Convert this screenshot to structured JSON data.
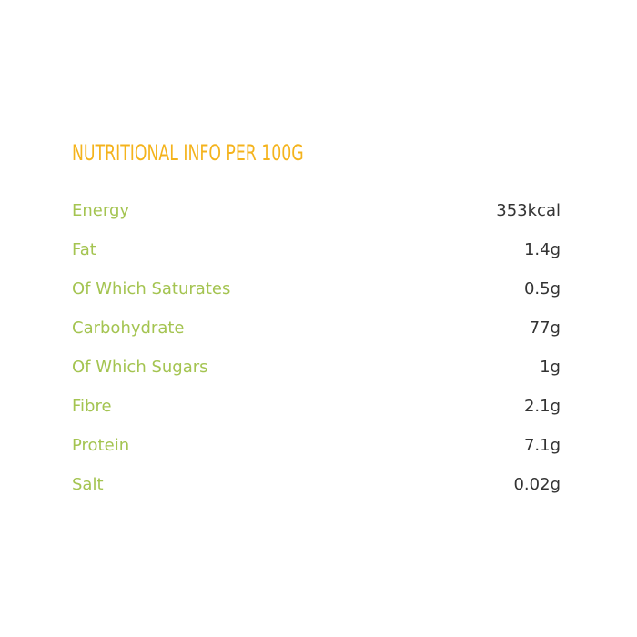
{
  "title": "NUTRITIONAL INFO PER 100G",
  "colors": {
    "title": "#f4b31c",
    "label": "#a4c451",
    "value": "#333333"
  },
  "rows": [
    {
      "label": "Energy",
      "value": "353kcal"
    },
    {
      "label": "Fat",
      "value": "1.4g"
    },
    {
      "label": "Of Which Saturates",
      "value": "0.5g"
    },
    {
      "label": "Carbohydrate",
      "value": "77g"
    },
    {
      "label": "Of Which Sugars",
      "value": "1g"
    },
    {
      "label": "Fibre",
      "value": "2.1g"
    },
    {
      "label": "Protein",
      "value": "7.1g"
    },
    {
      "label": "Salt",
      "value": "0.02g"
    }
  ]
}
